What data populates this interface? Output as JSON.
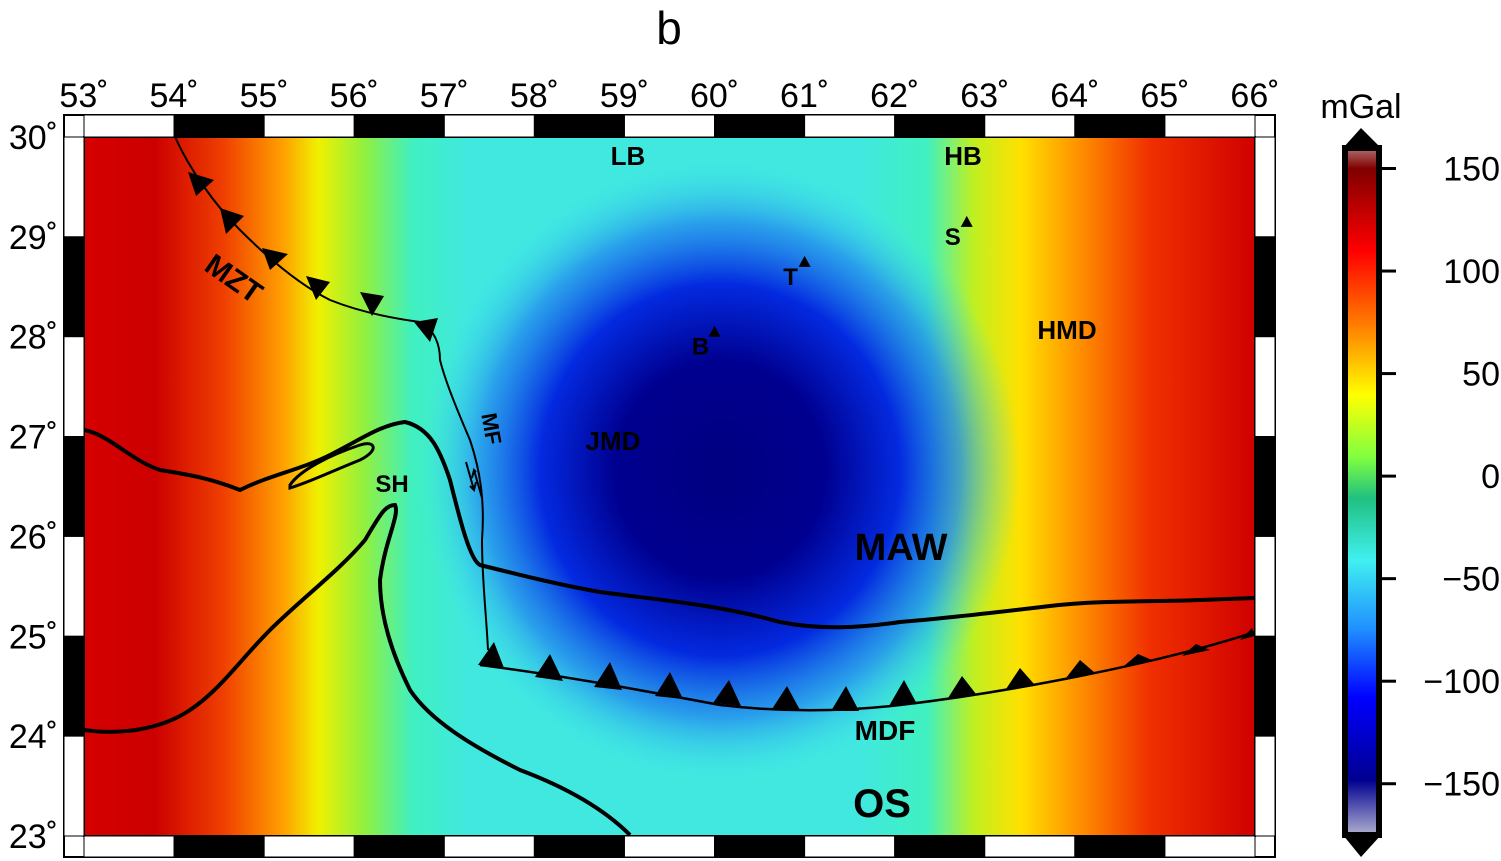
{
  "title": "b",
  "colorbar": {
    "unit": "mGal",
    "range": [
      -175,
      160
    ],
    "ticks": [
      {
        "value": 150,
        "label": "150"
      },
      {
        "value": 100,
        "label": "100"
      },
      {
        "value": 50,
        "label": "50"
      },
      {
        "value": 0,
        "label": "0"
      },
      {
        "value": -50,
        "label": "−50"
      },
      {
        "value": -100,
        "label": "−100"
      },
      {
        "value": -150,
        "label": "−150"
      }
    ]
  },
  "map": {
    "lon_range": [
      53,
      66
    ],
    "lat_range": [
      23,
      30
    ],
    "lon_ticks": [
      "53˚",
      "54˚",
      "55˚",
      "56˚",
      "57˚",
      "58˚",
      "59˚",
      "60˚",
      "61˚",
      "62˚",
      "63˚",
      "64˚",
      "65˚",
      "66˚"
    ],
    "lat_ticks": [
      "30˚",
      "29˚",
      "28˚",
      "27˚",
      "26˚",
      "25˚",
      "24˚",
      "23˚"
    ],
    "lat_tick_values": [
      30,
      29,
      28,
      27,
      26,
      25,
      24,
      23
    ]
  },
  "labels": {
    "lb": "LB",
    "hb": "HB",
    "mzt": "MZT",
    "mf": "MF",
    "jmd": "JMD",
    "hmd": "HMD",
    "maw": "MAW",
    "mdf": "MDF",
    "os": "OS",
    "sh": "SH"
  },
  "stations": [
    {
      "name": "B",
      "lon": 60.0,
      "lat": 28.05
    },
    {
      "name": "T",
      "lon": 61.0,
      "lat": 28.75
    },
    {
      "name": "S",
      "lon": 62.8,
      "lat": 29.15
    }
  ]
}
